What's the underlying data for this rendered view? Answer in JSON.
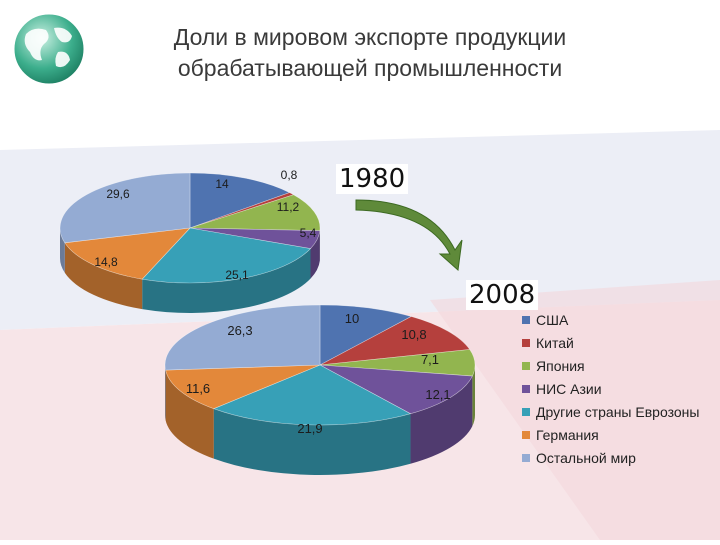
{
  "title": {
    "line1": "Доли в мировом экспорте продукции",
    "line2": "обрабатывающей промышленности"
  },
  "logo": {
    "icon": "globe-icon"
  },
  "years": {
    "first": "1980",
    "second": "2008"
  },
  "colors": {
    "background_band": "#e9ecf5",
    "background_pink": "#f6e3e6",
    "arrow": "#5f8a3a"
  },
  "chart_data": {
    "type": "pie",
    "legend": {
      "position": "right",
      "entries": [
        "США",
        "Китай",
        "Япония",
        "НИС Азии",
        "Другие страны Еврозоны",
        "Германия",
        "Остальной мир"
      ]
    },
    "series_colors": [
      "#4f73b0",
      "#b5403d",
      "#92b54f",
      "#6f529a",
      "#37a0b7",
      "#e3883a",
      "#94abd3"
    ],
    "pies": [
      {
        "name": "1980",
        "values": [
          14,
          0.8,
          11.2,
          5.4,
          25.1,
          14.8,
          29.6
        ],
        "labels": [
          "14",
          "0,8",
          "11,2",
          "5,4",
          "25,1",
          "14,8",
          "29,6"
        ]
      },
      {
        "name": "2008",
        "values": [
          10,
          10.8,
          7.1,
          12.1,
          21.9,
          11.6,
          26.3
        ],
        "labels": [
          "10",
          "10,8",
          "7,1",
          "12,1",
          "21,9",
          "11,6",
          "26,3"
        ]
      }
    ]
  }
}
